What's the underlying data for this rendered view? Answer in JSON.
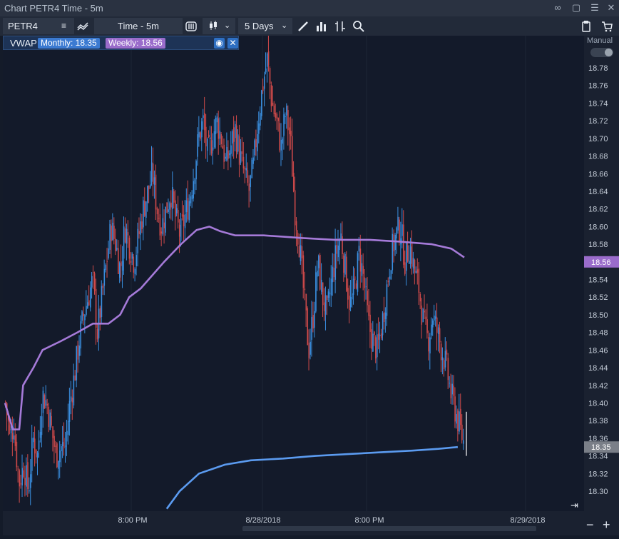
{
  "window": {
    "title": "Chart PETR4 Time - 5m"
  },
  "toolbar": {
    "symbol": "PETR4",
    "interval": "Time - 5m",
    "range": "5 Days"
  },
  "vwap": {
    "label": "VWAP",
    "monthly_label": "Monthly: 18.35",
    "weekly_label": "Weekly: 18.56",
    "monthly_color": "#5b9bf0",
    "weekly_color": "#a57ad8"
  },
  "right_panel": {
    "manual_label": "Manual"
  },
  "colors": {
    "up": "#3a8fe0",
    "down": "#d04a4a",
    "background": "#131a2a"
  },
  "chart_data": {
    "type": "candlestick",
    "y_ticks": [
      "18.78",
      "18.76",
      "18.74",
      "18.72",
      "18.70",
      "18.68",
      "18.66",
      "18.64",
      "18.62",
      "18.60",
      "18.58",
      "18.56",
      "18.54",
      "18.52",
      "18.50",
      "18.48",
      "18.46",
      "18.44",
      "18.42",
      "18.40",
      "18.38",
      "18.36",
      "18.34",
      "18.32",
      "18.30"
    ],
    "ylim": [
      18.29,
      18.8
    ],
    "x_ticks": [
      "8:00 PM",
      "8/28/2018",
      "8:00 PM",
      "8/29/2018"
    ],
    "price_labels": [
      {
        "value": 18.56,
        "text": "18.56",
        "series": "weekly"
      },
      {
        "value": 18.35,
        "text": "18.35",
        "series": "last"
      }
    ],
    "close_path": [
      [
        18.4,
        18.36,
        18.38
      ],
      [
        18.36,
        18.31,
        18.33
      ],
      [
        18.33,
        18.3,
        18.36
      ],
      [
        18.36,
        18.34,
        18.41
      ],
      [
        18.41,
        18.4,
        18.37
      ],
      [
        18.37,
        18.34,
        18.35
      ],
      [
        18.35,
        18.35,
        18.4
      ],
      [
        18.4,
        18.43,
        18.47
      ],
      [
        18.47,
        18.5,
        18.52
      ],
      [
        18.52,
        18.54,
        18.48
      ],
      [
        18.48,
        18.52,
        18.56
      ],
      [
        18.56,
        18.6,
        18.58
      ],
      [
        18.58,
        18.55,
        18.6
      ],
      [
        18.6,
        18.58,
        18.56
      ],
      [
        18.56,
        18.59,
        18.62
      ],
      [
        18.62,
        18.64,
        18.66
      ],
      [
        18.66,
        18.62,
        18.6
      ],
      [
        18.6,
        18.62,
        18.64
      ],
      [
        18.64,
        18.61,
        18.59
      ],
      [
        18.59,
        18.61,
        18.63
      ],
      [
        18.63,
        18.66,
        18.7
      ],
      [
        18.7,
        18.72,
        18.68
      ],
      [
        18.68,
        18.7,
        18.72
      ],
      [
        18.72,
        18.7,
        18.67
      ],
      [
        18.67,
        18.69,
        18.71
      ],
      [
        18.71,
        18.68,
        18.66
      ],
      [
        18.66,
        18.64,
        18.67
      ],
      [
        18.67,
        18.72,
        18.76
      ],
      [
        18.76,
        18.79,
        18.74
      ],
      [
        18.74,
        18.72,
        18.69
      ],
      [
        18.69,
        18.73,
        18.7
      ],
      [
        18.7,
        18.62,
        18.58
      ],
      [
        18.58,
        18.52,
        18.46
      ],
      [
        18.46,
        18.5,
        18.56
      ],
      [
        18.56,
        18.52,
        18.5
      ],
      [
        18.5,
        18.54,
        18.57
      ],
      [
        18.57,
        18.59,
        18.55
      ],
      [
        18.55,
        18.51,
        18.53
      ],
      [
        18.53,
        18.57,
        18.54
      ],
      [
        18.54,
        18.49,
        18.47
      ],
      [
        18.47,
        18.46,
        18.49
      ],
      [
        18.49,
        18.53,
        18.57
      ],
      [
        18.57,
        18.59,
        18.6
      ],
      [
        18.6,
        18.56,
        18.58
      ],
      [
        18.58,
        18.55,
        18.53
      ],
      [
        18.53,
        18.49,
        18.47
      ],
      [
        18.47,
        18.5,
        18.48
      ],
      [
        18.48,
        18.46,
        18.44
      ],
      [
        18.44,
        18.41,
        18.39
      ],
      [
        18.39,
        18.37,
        18.35
      ]
    ],
    "vwap_weekly": [
      [
        0,
        18.4
      ],
      [
        6,
        18.37
      ],
      [
        11,
        18.37
      ],
      [
        14,
        18.42
      ],
      [
        22,
        18.44
      ],
      [
        29,
        18.46
      ],
      [
        43,
        18.47
      ],
      [
        56,
        18.48
      ],
      [
        68,
        18.49
      ],
      [
        80,
        18.49
      ],
      [
        89,
        18.5
      ],
      [
        96,
        18.52
      ],
      [
        105,
        18.53
      ],
      [
        123,
        18.56
      ],
      [
        136,
        18.58
      ],
      [
        148,
        18.596
      ],
      [
        158,
        18.6
      ],
      [
        166,
        18.595
      ],
      [
        178,
        18.59
      ],
      [
        200,
        18.59
      ],
      [
        230,
        18.587
      ],
      [
        255,
        18.585
      ],
      [
        282,
        18.585
      ],
      [
        305,
        18.583
      ],
      [
        330,
        18.58
      ],
      [
        345,
        18.575
      ],
      [
        355,
        18.565
      ]
    ],
    "vwap_monthly": [
      [
        125,
        18.28
      ],
      [
        135,
        18.3
      ],
      [
        150,
        18.32
      ],
      [
        170,
        18.33
      ],
      [
        190,
        18.335
      ],
      [
        215,
        18.337
      ],
      [
        240,
        18.34
      ],
      [
        265,
        18.342
      ],
      [
        290,
        18.344
      ],
      [
        315,
        18.346
      ],
      [
        335,
        18.348
      ],
      [
        350,
        18.35
      ]
    ]
  }
}
